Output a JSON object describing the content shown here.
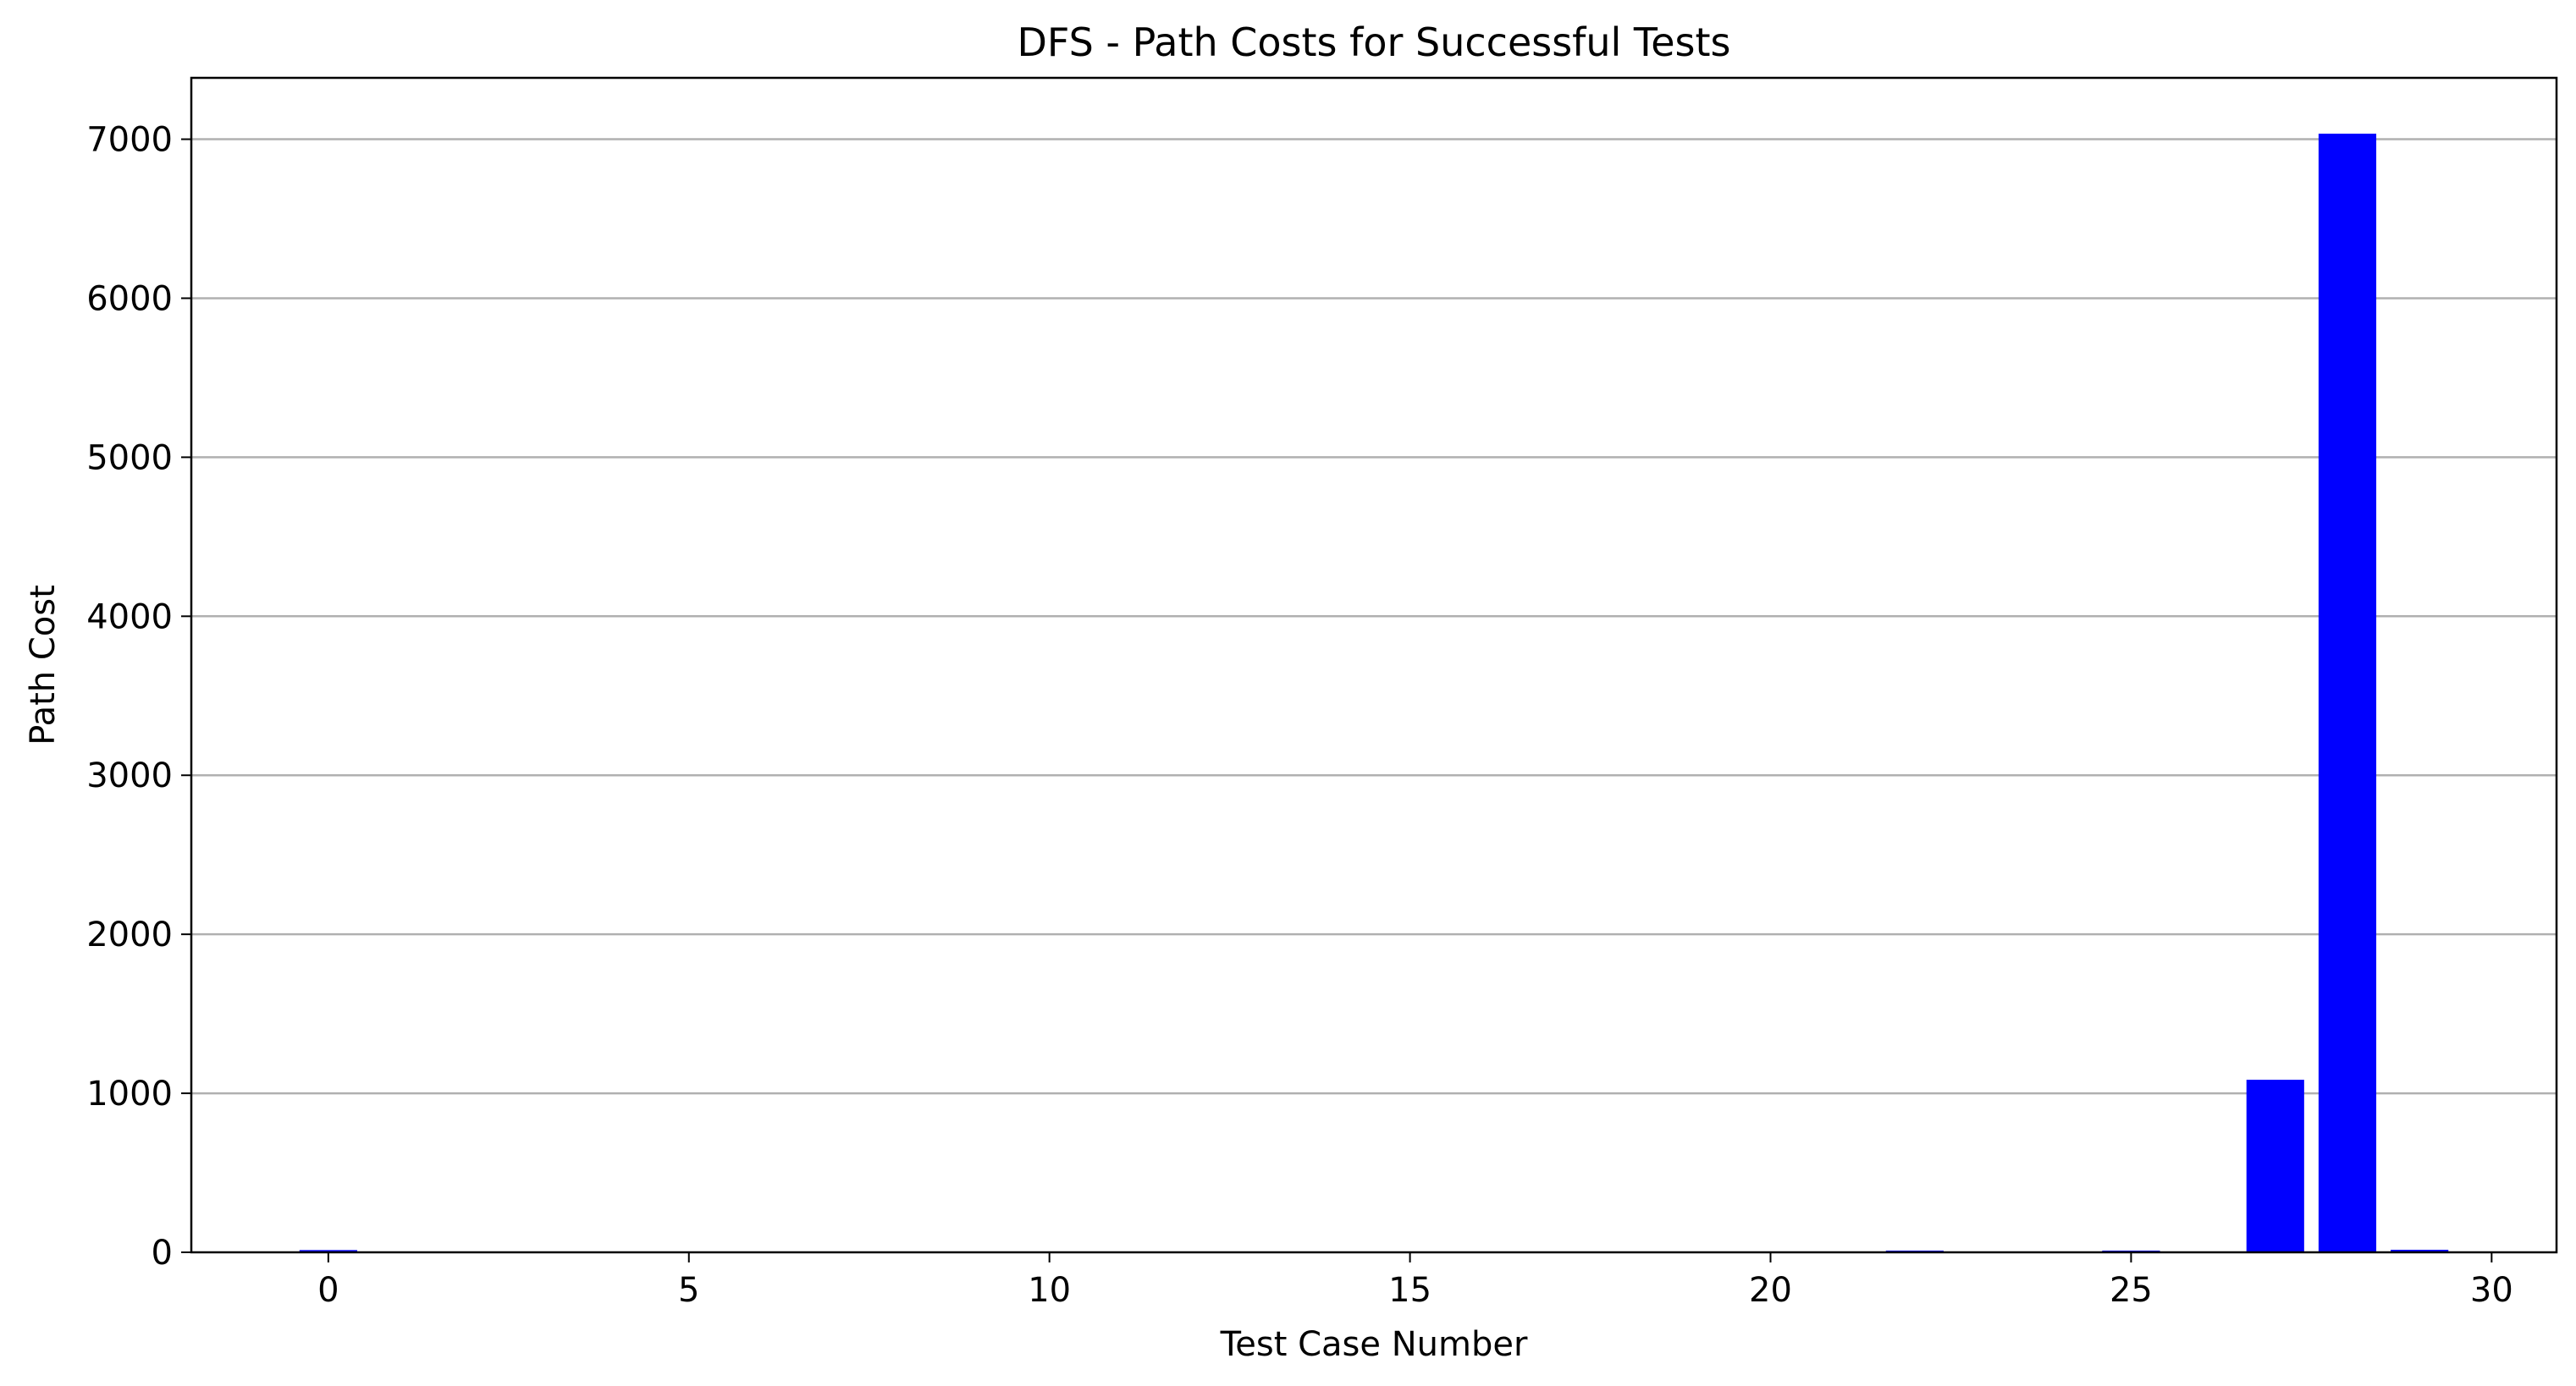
{
  "chart_data": {
    "type": "bar",
    "title": "DFS - Path Costs for Successful Tests",
    "xlabel": "Test Case Number",
    "ylabel": "Path Cost",
    "x": [
      0,
      22,
      25,
      27,
      28,
      29
    ],
    "values": [
      14,
      3,
      6,
      1085,
      7035,
      16
    ],
    "bar_color": "#0000ff",
    "xlim": [
      -1.9,
      30.9
    ],
    "ylim": [
      0,
      7386
    ],
    "xticks": [
      0,
      5,
      10,
      15,
      20,
      25,
      30
    ],
    "yticks": [
      0,
      1000,
      2000,
      3000,
      4000,
      5000,
      6000,
      7000
    ],
    "grid": "y",
    "legend": "none"
  }
}
